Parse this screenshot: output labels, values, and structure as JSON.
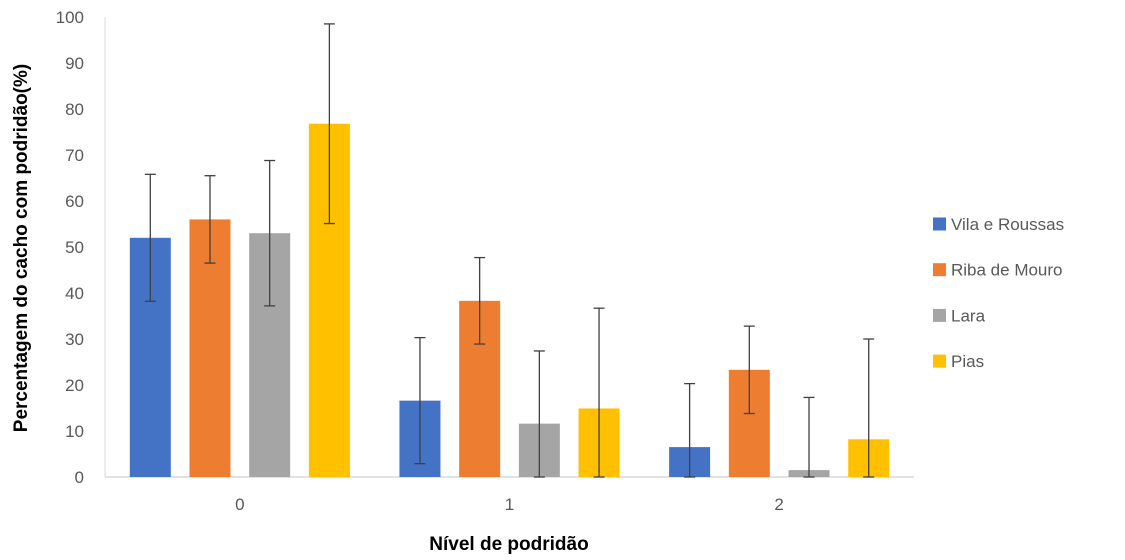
{
  "chart_data": {
    "type": "bar",
    "xlabel": "Nível de podridão",
    "ylabel": "Percentagem do cacho com podridão(%)",
    "categories": [
      "0",
      "1",
      "2"
    ],
    "ylim": [
      0,
      100
    ],
    "yticks": [
      "0",
      "10",
      "20",
      "30",
      "40",
      "50",
      "60",
      "70",
      "80",
      "90",
      "100"
    ],
    "grid": false,
    "legend_position": "right",
    "series": [
      {
        "name": "Vila e Roussas",
        "color": "#4472C4",
        "values": [
          52,
          16.6,
          6.5
        ],
        "error": [
          13.8,
          13.7,
          13.8
        ]
      },
      {
        "name": "Riba de Mouro",
        "color": "#ED7D31",
        "values": [
          56,
          38.3,
          23.3
        ],
        "error": [
          9.5,
          9.4,
          9.5
        ]
      },
      {
        "name": "Lara",
        "color": "#A5A5A5",
        "values": [
          53,
          11.6,
          1.5
        ],
        "error": [
          15.8,
          15.8,
          15.8
        ]
      },
      {
        "name": "Pias",
        "color": "#FFC000",
        "values": [
          76.8,
          14.9,
          8.2
        ],
        "error": [
          21.7,
          21.8,
          21.8
        ]
      }
    ]
  }
}
